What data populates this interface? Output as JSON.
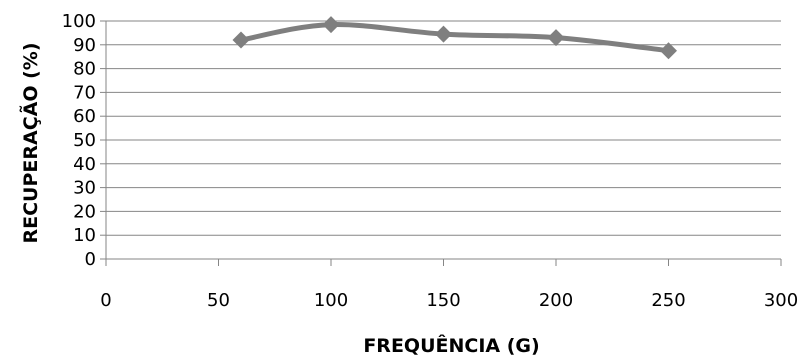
{
  "chart_data": {
    "type": "scatter",
    "title": "",
    "xlabel": "FREQUÊNCIA (G)",
    "ylabel": "RECUPERAÇÃO (%)",
    "xlim": [
      0,
      300
    ],
    "ylim": [
      0,
      100
    ],
    "xticks": [
      "0",
      "50",
      "100",
      "150",
      "200",
      "250",
      "300"
    ],
    "yticks": [
      "0",
      "10",
      "20",
      "30",
      "40",
      "50",
      "60",
      "70",
      "80",
      "90",
      "100"
    ],
    "grid": "horizontal",
    "legend": "none",
    "line_color": "#7f7f7f",
    "marker": "diamond",
    "smooth": true,
    "series": [
      {
        "x": [
          60,
          100,
          150,
          200,
          250
        ],
        "y": [
          92,
          98.5,
          94.5,
          93,
          87.5
        ]
      }
    ]
  }
}
